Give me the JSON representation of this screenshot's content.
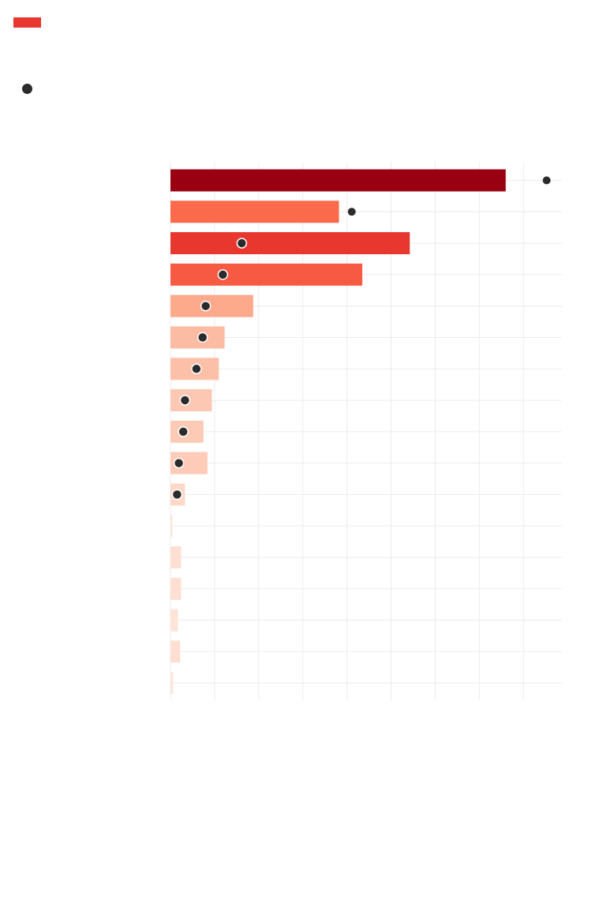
{
  "colors": {
    "accent": "#e8372f",
    "dot": "#2b2b2b",
    "grid": "#ececec",
    "palette": [
      "#990012",
      "#fb6a4a",
      "#e8372f",
      "#f75a42",
      "#fca98c",
      "#fcbba3",
      "#fcc0a8",
      "#fdc8b3",
      "#fdcab5",
      "#fdcbb8",
      "#fed9ca",
      "#fee4d8",
      "#fedfd1",
      "#fedfd1",
      "#fee3d7",
      "#fedfd2",
      "#fee6dc"
    ]
  },
  "legend": {
    "bar_icon": "bar-swatch",
    "dot_icon": "dot-marker"
  },
  "chart_data": {
    "type": "bar",
    "orientation": "horizontal",
    "x_range": [
      0,
      8.9
    ],
    "gridlines": 9,
    "grid": true,
    "series": [
      {
        "values": [
          7.62,
          3.83,
          5.44,
          4.36,
          1.88,
          1.23,
          1.1,
          0.94,
          0.75,
          0.84,
          0.33,
          0.04,
          0.24,
          0.24,
          0.17,
          0.22,
          0.06
        ]
      },
      {
        "values": [
          8.55,
          4.12,
          1.62,
          1.19,
          0.8,
          0.73,
          0.59,
          0.33,
          0.29,
          0.19,
          0.15,
          null,
          null,
          null,
          null,
          null,
          null
        ]
      }
    ]
  }
}
